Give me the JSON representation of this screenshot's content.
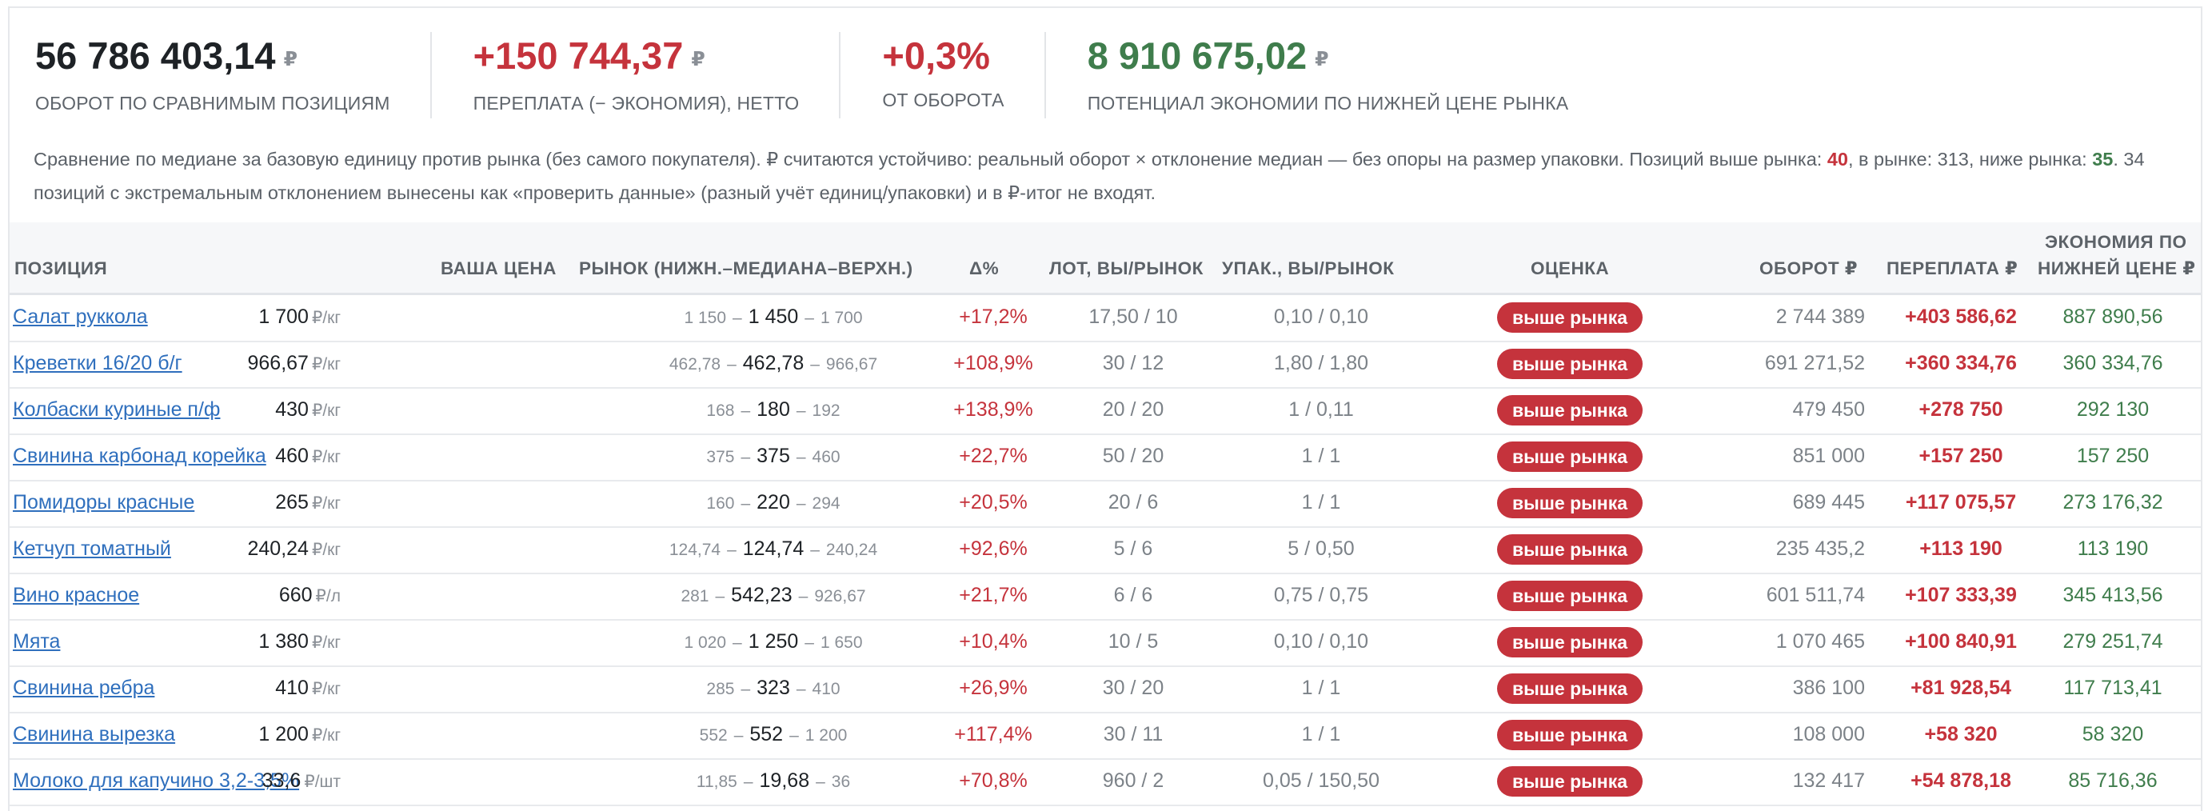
{
  "kpis": [
    {
      "value": "56 786 403,14",
      "currency": "₽",
      "label": "ОБОРОТ ПО СРАВНИМЫМ ПОЗИЦИЯМ",
      "color": "#1e2226"
    },
    {
      "value": "+150 744,37",
      "currency": "₽",
      "label": "ПЕРЕПЛАТА (− ЭКОНОМИЯ), НЕТТО",
      "color": "#c5333c"
    },
    {
      "value": "+0,3%",
      "currency": "",
      "label": "ОТ ОБОРОТА",
      "color": "#c5333c"
    },
    {
      "value": "8 910 675,02",
      "currency": "₽",
      "label": "ПОТЕНЦИАЛ ЭКОНОМИИ ПО НИЖНЕЙ ЦЕНЕ РЫНКА",
      "color": "#3f7d4c"
    }
  ],
  "note": {
    "part1": "Сравнение по медиане за базовую единицу против рынка (без самого покупателя). ₽ считаются устойчиво: реальный оборот × отклонение медиан — без опоры на размер упаковки. Позиций выше рынка: ",
    "above": "40",
    "part2": ", в рынке: 313, ниже рынка: ",
    "below": "35",
    "part3": ". 34 позиций с экстремальным отклонением вынесены как «проверить данные» (разный учёт единиц/упаковки) и в ₽-итог не входят."
  },
  "headers": {
    "position": "ПОЗИЦИЯ",
    "price": "ВАША ЦЕНА",
    "market": "РЫНОК (НИЖН.–МЕДИАНА–ВЕРХН.)",
    "delta": "Δ%",
    "lot": "ЛОТ, ВЫ/РЫНОК",
    "pack": "УПАК., ВЫ/РЫНОК",
    "rating": "ОЦЕНКА",
    "turnover": "ОБОРОТ ₽",
    "overpay": "ПЕРЕПЛАТА ₽",
    "savings_line1": "ЭКОНОМИЯ ПО",
    "savings_line2": "НИЖНЕЙ ЦЕНЕ ₽"
  },
  "rows": [
    {
      "name": "Салат руккола",
      "price": "1 700",
      "unit": "₽/кг",
      "low": "1 150",
      "median": "1 450",
      "high": "1 700",
      "delta": "+17,2%",
      "lot": "17,50 / 10",
      "pack": "0,10 / 0,10",
      "rating": "выше рынка",
      "turnover": "2 744 389",
      "overpay": "+403 586,62",
      "savings": "887 890,56"
    },
    {
      "name": "Креветки 16/20 б/г",
      "price": "966,67",
      "unit": "₽/кг",
      "low": "462,78",
      "median": "462,78",
      "high": "966,67",
      "delta": "+108,9%",
      "lot": "30 / 12",
      "pack": "1,80 / 1,80",
      "rating": "выше рынка",
      "turnover": "691 271,52",
      "overpay": "+360 334,76",
      "savings": "360 334,76"
    },
    {
      "name": "Колбаски куриные п/ф",
      "price": "430",
      "unit": "₽/кг",
      "low": "168",
      "median": "180",
      "high": "192",
      "delta": "+138,9%",
      "lot": "20 / 20",
      "pack": "1 / 0,11",
      "rating": "выше рынка",
      "turnover": "479 450",
      "overpay": "+278 750",
      "savings": "292 130"
    },
    {
      "name": "Свинина карбонад корейка",
      "price": "460",
      "unit": "₽/кг",
      "low": "375",
      "median": "375",
      "high": "460",
      "delta": "+22,7%",
      "lot": "50 / 20",
      "pack": "1 / 1",
      "rating": "выше рынка",
      "turnover": "851 000",
      "overpay": "+157 250",
      "savings": "157 250"
    },
    {
      "name": "Помидоры красные",
      "price": "265",
      "unit": "₽/кг",
      "low": "160",
      "median": "220",
      "high": "294",
      "delta": "+20,5%",
      "lot": "20 / 6",
      "pack": "1 / 1",
      "rating": "выше рынка",
      "turnover": "689 445",
      "overpay": "+117 075,57",
      "savings": "273 176,32"
    },
    {
      "name": "Кетчуп томатный",
      "price": "240,24",
      "unit": "₽/кг",
      "low": "124,74",
      "median": "124,74",
      "high": "240,24",
      "delta": "+92,6%",
      "lot": "5 / 6",
      "pack": "5 / 0,50",
      "rating": "выше рынка",
      "turnover": "235 435,2",
      "overpay": "+113 190",
      "savings": "113 190"
    },
    {
      "name": "Вино красное",
      "price": "660",
      "unit": "₽/л",
      "low": "281",
      "median": "542,23",
      "high": "926,67",
      "delta": "+21,7%",
      "lot": "6 / 6",
      "pack": "0,75 / 0,75",
      "rating": "выше рынка",
      "turnover": "601 511,74",
      "overpay": "+107 333,39",
      "savings": "345 413,56"
    },
    {
      "name": "Мята",
      "price": "1 380",
      "unit": "₽/кг",
      "low": "1 020",
      "median": "1 250",
      "high": "1 650",
      "delta": "+10,4%",
      "lot": "10 / 5",
      "pack": "0,10 / 0,10",
      "rating": "выше рынка",
      "turnover": "1 070 465",
      "overpay": "+100 840,91",
      "savings": "279 251,74"
    },
    {
      "name": "Свинина ребра",
      "price": "410",
      "unit": "₽/кг",
      "low": "285",
      "median": "323",
      "high": "410",
      "delta": "+26,9%",
      "lot": "30 / 20",
      "pack": "1 / 1",
      "rating": "выше рынка",
      "turnover": "386 100",
      "overpay": "+81 928,54",
      "savings": "117 713,41"
    },
    {
      "name": "Свинина вырезка",
      "price": "1 200",
      "unit": "₽/кг",
      "low": "552",
      "median": "552",
      "high": "1 200",
      "delta": "+117,4%",
      "lot": "30 / 11",
      "pack": "1 / 1",
      "rating": "выше рынка",
      "turnover": "108 000",
      "overpay": "+58 320",
      "savings": "58 320"
    },
    {
      "name": "Молоко для капучино 3,2-3,5%",
      "price": "33,6",
      "unit": "₽/шт",
      "low": "11,85",
      "median": "19,68",
      "high": "36",
      "delta": "+70,8%",
      "lot": "960 / 2",
      "pack": "0,05 / 150,50",
      "rating": "выше рынка",
      "turnover": "132 417",
      "overpay": "+54 878,18",
      "savings": "85 716,36"
    }
  ]
}
